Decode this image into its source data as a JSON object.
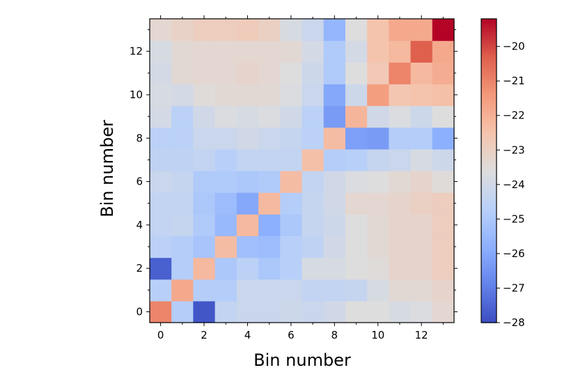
{
  "chart_data": {
    "type": "heatmap",
    "xlabel": "Bin number",
    "ylabel": "Bin number",
    "x_ticks": [
      "0",
      "2",
      "4",
      "6",
      "8",
      "10",
      "12"
    ],
    "y_ticks": [
      "0",
      "2",
      "4",
      "6",
      "8",
      "10",
      "12"
    ],
    "x_tick_values": [
      0,
      2,
      4,
      6,
      8,
      10,
      12
    ],
    "y_tick_values": [
      0,
      2,
      4,
      6,
      8,
      10,
      12
    ],
    "colorbar": {
      "vmin": -28,
      "vmax": -19.2,
      "ticks": [
        "-20",
        "-21",
        "-22",
        "-23",
        "-24",
        "-25",
        "-26",
        "-27",
        "-28"
      ],
      "tick_values": [
        -20,
        -21,
        -22,
        -23,
        -24,
        -25,
        -26,
        -27,
        -28
      ],
      "colormap": "coolwarm"
    },
    "n_bins": 14,
    "z": [
      [
        -21.0,
        -24.8,
        -27.8,
        -24.4,
        -24.2,
        -24.2,
        -24.1,
        -24.2,
        -24.0,
        -23.6,
        -23.6,
        -23.8,
        -23.7,
        -23.3
      ],
      [
        -24.7,
        -21.8,
        -24.8,
        -24.8,
        -24.2,
        -24.2,
        -24.2,
        -24.4,
        -24.4,
        -24.3,
        -23.8,
        -23.4,
        -23.4,
        -23.2
      ],
      [
        -27.6,
        -24.8,
        -22.2,
        -25.0,
        -24.6,
        -25.0,
        -24.7,
        -23.8,
        -23.8,
        -23.6,
        -23.5,
        -23.2,
        -23.2,
        -22.9
      ],
      [
        -24.6,
        -24.8,
        -25.1,
        -22.3,
        -25.3,
        -25.4,
        -24.7,
        -24.5,
        -24.0,
        -23.6,
        -23.4,
        -23.2,
        -23.2,
        -22.9
      ],
      [
        -24.4,
        -24.3,
        -24.9,
        -25.5,
        -22.2,
        -25.8,
        -25.0,
        -24.3,
        -24.1,
        -23.6,
        -23.4,
        -23.2,
        -23.2,
        -22.9
      ],
      [
        -24.4,
        -24.4,
        -25.0,
        -25.4,
        -26.0,
        -22.2,
        -24.8,
        -24.3,
        -24.0,
        -23.3,
        -23.3,
        -23.2,
        -23.0,
        -22.9
      ],
      [
        -24.2,
        -24.3,
        -24.9,
        -24.9,
        -25.0,
        -24.9,
        -22.3,
        -24.4,
        -24.0,
        -23.7,
        -23.6,
        -23.4,
        -23.2,
        -23.5
      ],
      [
        -24.5,
        -24.5,
        -24.4,
        -24.7,
        -24.4,
        -24.4,
        -24.4,
        -22.4,
        -24.8,
        -24.7,
        -24.3,
        -24.2,
        -23.8,
        -24.1
      ],
      [
        -24.6,
        -24.6,
        -24.2,
        -24.2,
        -24.0,
        -24.2,
        -24.3,
        -24.6,
        -22.3,
        -26.2,
        -26.3,
        -24.8,
        -24.8,
        -25.8
      ],
      [
        -23.9,
        -24.6,
        -24.0,
        -23.7,
        -23.8,
        -23.7,
        -24.0,
        -24.6,
        -26.3,
        -22.1,
        -24.0,
        -23.7,
        -24.1,
        -23.6
      ],
      [
        -23.8,
        -23.9,
        -23.5,
        -23.4,
        -23.4,
        -23.4,
        -23.7,
        -24.2,
        -26.0,
        -24.1,
        -21.5,
        -22.6,
        -22.5,
        -22.4
      ],
      [
        -23.9,
        -23.4,
        -23.3,
        -23.3,
        -23.2,
        -23.3,
        -23.6,
        -24.1,
        -24.9,
        -23.6,
        -22.7,
        -21.0,
        -22.2,
        -21.9
      ],
      [
        -23.8,
        -23.4,
        -23.3,
        -23.3,
        -23.3,
        -23.3,
        -23.4,
        -23.9,
        -24.9,
        -23.9,
        -22.5,
        -22.2,
        -20.3,
        -21.8
      ],
      [
        -23.3,
        -23.1,
        -22.9,
        -22.9,
        -22.8,
        -23.0,
        -23.8,
        -24.2,
        -25.6,
        -23.6,
        -22.5,
        -21.8,
        -21.8,
        -19.2
      ]
    ]
  }
}
